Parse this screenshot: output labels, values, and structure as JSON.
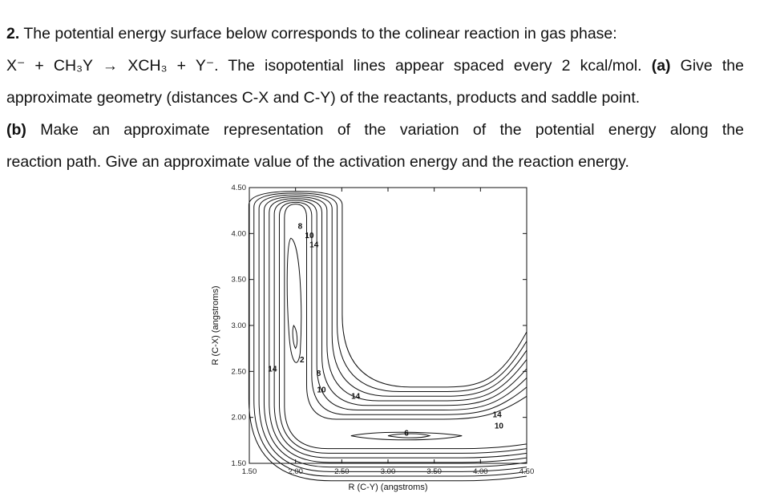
{
  "problem": {
    "number": "2.",
    "intro": " The potential energy surface below corresponds to the colinear reaction in gas phase:",
    "reaction": "X⁻ + CH₃Y → XCH₃ + Y⁻.",
    "spacing": " The isopotential lines appear spaced every 2 kcal/mol. ",
    "part_a_label": "(a)",
    "part_a_line1": " Give the",
    "part_a_line2": "approximate geometry (distances C-X and C-Y) of the reactants, products and saddle point.",
    "part_b_label": "(b)",
    "part_b_line1": " Make an approximate representation of the variation of the potential energy along the",
    "part_b_line2": "reaction path. Give an approximate value of the activation energy and the reaction energy."
  },
  "chart_data": {
    "type": "contour",
    "xlabel": "R (C-Y) (angstroms)",
    "ylabel": "R (C-X) (angstroms)",
    "xlim": [
      1.5,
      4.5
    ],
    "ylim": [
      1.5,
      4.5
    ],
    "x_ticks": [
      "1.50",
      "2.00",
      "2.50",
      "3.00",
      "3.50",
      "4.00",
      "4.50"
    ],
    "y_ticks": [
      "1.50",
      "2.00",
      "2.50",
      "3.00",
      "3.50",
      "4.00",
      "4.50"
    ],
    "contour_interval_kcal_mol": 2,
    "contour_labels": [
      {
        "text": "8",
        "x": 2.05,
        "y": 4.05
      },
      {
        "text": "10",
        "x": 2.15,
        "y": 3.95
      },
      {
        "text": "14",
        "x": 2.2,
        "y": 3.85
      },
      {
        "text": "2",
        "x": 2.07,
        "y": 2.6
      },
      {
        "text": "8",
        "x": 2.25,
        "y": 2.45
      },
      {
        "text": "10",
        "x": 2.28,
        "y": 2.27
      },
      {
        "text": "14",
        "x": 2.65,
        "y": 2.2
      },
      {
        "text": "14",
        "x": 1.75,
        "y": 2.5
      },
      {
        "text": "6",
        "x": 3.2,
        "y": 1.8
      },
      {
        "text": "14",
        "x": 4.18,
        "y": 2.0
      },
      {
        "text": "10",
        "x": 4.2,
        "y": 1.88
      }
    ]
  }
}
